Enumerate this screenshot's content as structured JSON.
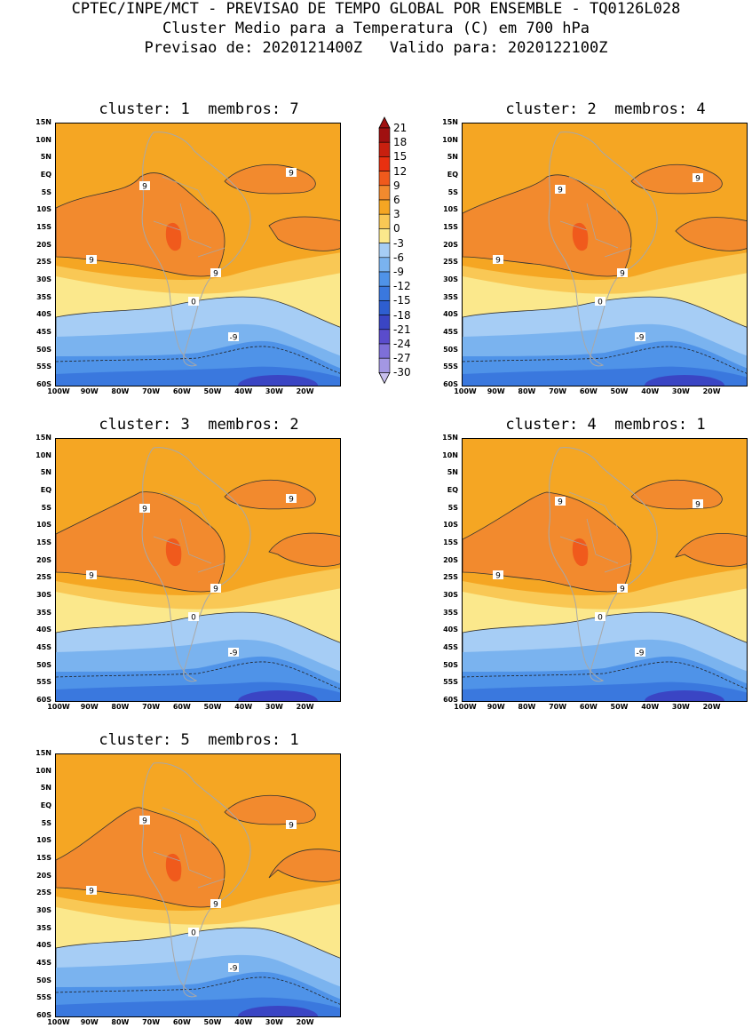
{
  "header": {
    "line1": "CPTEC/INPE/MCT - PREVISAO DE TEMPO GLOBAL POR ENSEMBLE - TQ0126L028",
    "line2": "Cluster Medio para a Temperatura (C) em 700 hPa",
    "line3": "Previsao de: 2020121400Z   Valido para: 2020122100Z"
  },
  "panels": [
    {
      "title": "cluster: 1  membros: 7"
    },
    {
      "title": "cluster: 2  membros: 4"
    },
    {
      "title": "cluster: 3  membros: 2"
    },
    {
      "title": "cluster: 4  membros: 1"
    },
    {
      "title": "cluster: 5  membros: 1"
    }
  ],
  "lat_labels": [
    "15N",
    "10N",
    "5N",
    "EQ",
    "5S",
    "10S",
    "15S",
    "20S",
    "25S",
    "30S",
    "35S",
    "40S",
    "45S",
    "50S",
    "55S",
    "60S"
  ],
  "lon_labels": [
    "100W",
    "90W",
    "80W",
    "70W",
    "60W",
    "50W",
    "40W",
    "30W",
    "20W"
  ],
  "colorbar": {
    "labels": [
      "21",
      "18",
      "15",
      "12",
      "9",
      "6",
      "3",
      "0",
      "-3",
      "-6",
      "-9",
      "-12",
      "-15",
      "-18",
      "-21",
      "-24",
      "-27",
      "-30"
    ],
    "colors": [
      "#a01010",
      "#c8200f",
      "#e83010",
      "#f05a1c",
      "#f28a2e",
      "#f5a623",
      "#f9c855",
      "#fbe88c",
      "#a6cdf5",
      "#7ab3ef",
      "#4f93e8",
      "#3a78de",
      "#2e5ed0",
      "#3a45c4",
      "#5a4ccc",
      "#7e6fd8",
      "#a397e3",
      "#c9c0ee"
    ]
  },
  "contour_labels": {
    "warm": "9",
    "zero": "0",
    "cold": "-9"
  }
}
